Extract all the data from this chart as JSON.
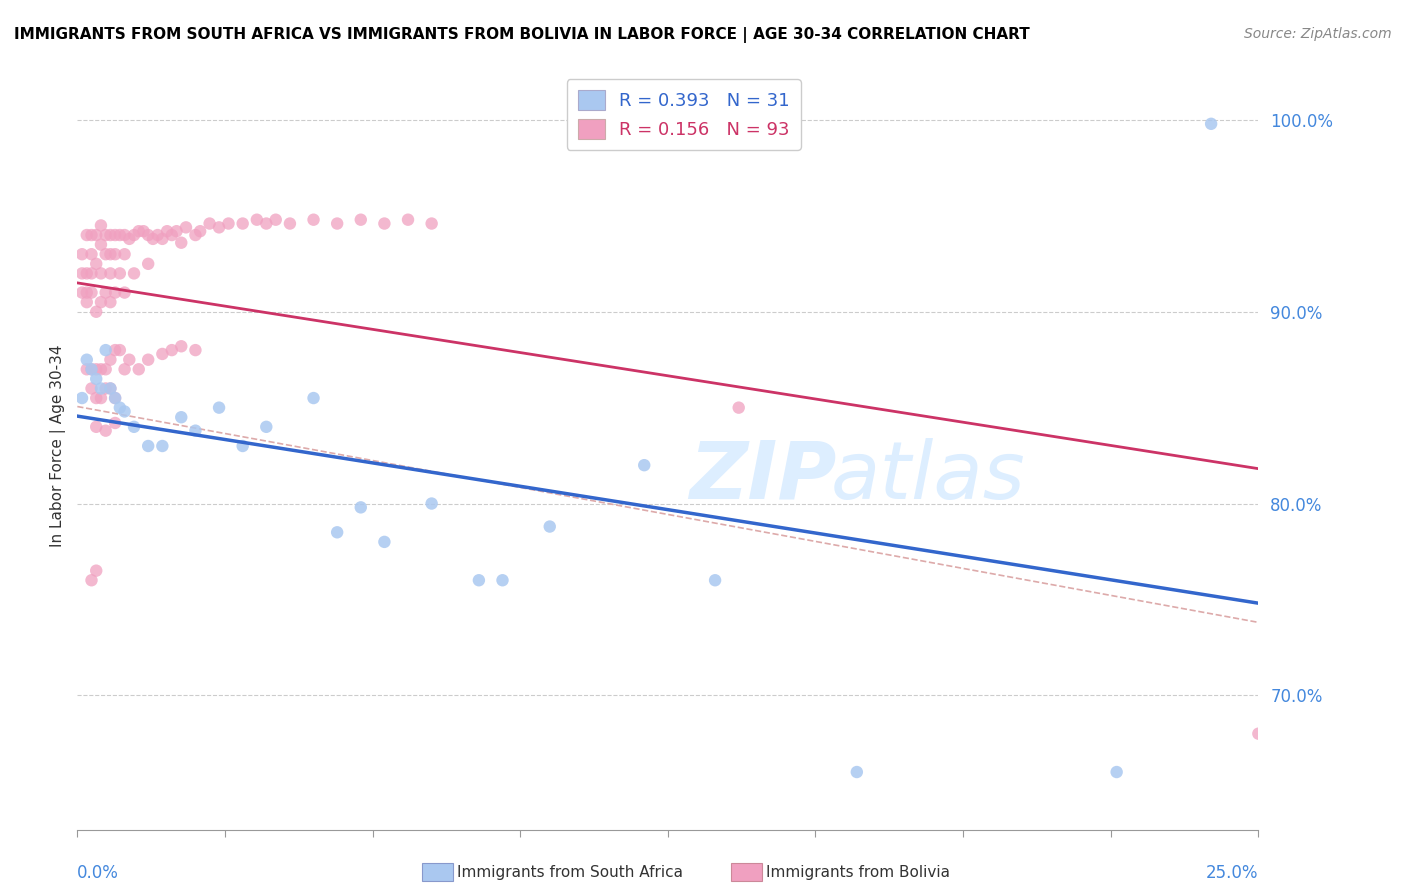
{
  "title": "IMMIGRANTS FROM SOUTH AFRICA VS IMMIGRANTS FROM BOLIVIA IN LABOR FORCE | AGE 30-34 CORRELATION CHART",
  "source": "Source: ZipAtlas.com",
  "ylabel": "In Labor Force | Age 30-34",
  "xlim": [
    0.0,
    0.25
  ],
  "ylim": [
    0.63,
    1.03
  ],
  "r_south_africa": 0.393,
  "n_south_africa": 31,
  "r_bolivia": 0.156,
  "n_bolivia": 93,
  "color_south_africa": "#aac8f0",
  "color_bolivia": "#f0a0c0",
  "trend_color_south_africa": "#3366cc",
  "trend_color_bolivia": "#cc3366",
  "ref_line_color": "#ddaaaa",
  "grid_color": "#cccccc",
  "y_tick_vals": [
    0.7,
    0.8,
    0.9,
    1.0
  ],
  "y_tick_labels": [
    "70.0%",
    "80.0%",
    "90.0%",
    "100.0%"
  ],
  "legend_label_sa": "Immigrants from South Africa",
  "legend_label_bo": "Immigrants from Bolivia",
  "sa_x": [
    0.001,
    0.002,
    0.003,
    0.004,
    0.005,
    0.006,
    0.007,
    0.008,
    0.009,
    0.01,
    0.012,
    0.015,
    0.018,
    0.022,
    0.025,
    0.03,
    0.035,
    0.04,
    0.05,
    0.055,
    0.06,
    0.065,
    0.075,
    0.085,
    0.09,
    0.1,
    0.12,
    0.135,
    0.165,
    0.22,
    0.24
  ],
  "sa_y": [
    0.855,
    0.875,
    0.87,
    0.865,
    0.86,
    0.88,
    0.86,
    0.855,
    0.85,
    0.848,
    0.84,
    0.83,
    0.83,
    0.845,
    0.838,
    0.85,
    0.83,
    0.84,
    0.855,
    0.785,
    0.798,
    0.78,
    0.8,
    0.76,
    0.76,
    0.788,
    0.82,
    0.76,
    0.66,
    0.66,
    0.998
  ],
  "bo_x": [
    0.001,
    0.001,
    0.001,
    0.002,
    0.002,
    0.002,
    0.002,
    0.003,
    0.003,
    0.003,
    0.003,
    0.004,
    0.004,
    0.004,
    0.005,
    0.005,
    0.005,
    0.005,
    0.006,
    0.006,
    0.006,
    0.007,
    0.007,
    0.007,
    0.007,
    0.008,
    0.008,
    0.008,
    0.009,
    0.009,
    0.01,
    0.01,
    0.01,
    0.011,
    0.012,
    0.012,
    0.013,
    0.014,
    0.015,
    0.015,
    0.016,
    0.017,
    0.018,
    0.019,
    0.02,
    0.021,
    0.022,
    0.023,
    0.025,
    0.026,
    0.028,
    0.03,
    0.032,
    0.035,
    0.038,
    0.04,
    0.042,
    0.045,
    0.05,
    0.055,
    0.06,
    0.065,
    0.07,
    0.075,
    0.002,
    0.003,
    0.003,
    0.004,
    0.004,
    0.005,
    0.005,
    0.006,
    0.006,
    0.007,
    0.007,
    0.008,
    0.008,
    0.009,
    0.01,
    0.011,
    0.013,
    0.015,
    0.018,
    0.02,
    0.022,
    0.025,
    0.004,
    0.006,
    0.008,
    0.14,
    0.003,
    0.004,
    0.25
  ],
  "bo_y": [
    0.93,
    0.92,
    0.91,
    0.94,
    0.92,
    0.91,
    0.905,
    0.94,
    0.93,
    0.92,
    0.91,
    0.94,
    0.925,
    0.9,
    0.945,
    0.935,
    0.92,
    0.905,
    0.94,
    0.93,
    0.91,
    0.94,
    0.93,
    0.92,
    0.905,
    0.94,
    0.93,
    0.91,
    0.94,
    0.92,
    0.94,
    0.93,
    0.91,
    0.938,
    0.94,
    0.92,
    0.942,
    0.942,
    0.94,
    0.925,
    0.938,
    0.94,
    0.938,
    0.942,
    0.94,
    0.942,
    0.936,
    0.944,
    0.94,
    0.942,
    0.946,
    0.944,
    0.946,
    0.946,
    0.948,
    0.946,
    0.948,
    0.946,
    0.948,
    0.946,
    0.948,
    0.946,
    0.948,
    0.946,
    0.87,
    0.87,
    0.86,
    0.87,
    0.855,
    0.87,
    0.855,
    0.87,
    0.86,
    0.875,
    0.86,
    0.88,
    0.855,
    0.88,
    0.87,
    0.875,
    0.87,
    0.875,
    0.878,
    0.88,
    0.882,
    0.88,
    0.84,
    0.838,
    0.842,
    0.85,
    0.76,
    0.765,
    0.68
  ]
}
